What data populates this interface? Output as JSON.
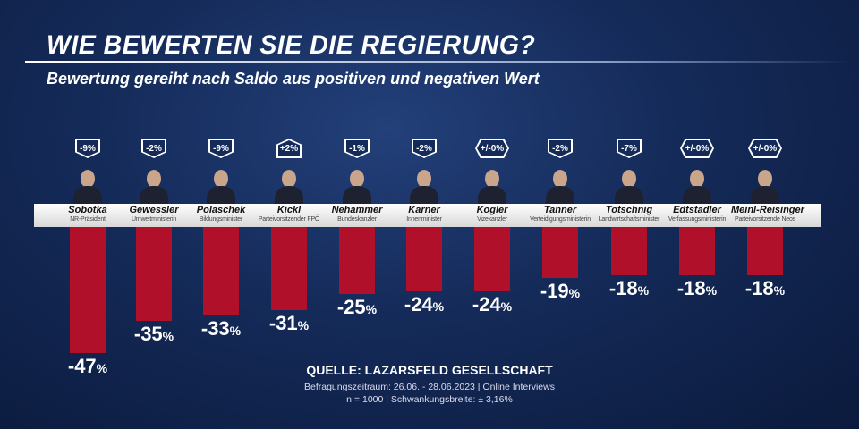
{
  "header": {
    "title": "WIE BEWERTEN SIE DIE REGIERUNG?",
    "subtitle": "Bewertung gereiht nach Saldo aus positiven und negativen Wert"
  },
  "chart_data": {
    "type": "bar",
    "categories": [
      "Sobotka",
      "Gewessler",
      "Polaschek",
      "Kickl",
      "Nehammer",
      "Karner",
      "Kogler",
      "Tanner",
      "Totschnig",
      "Edtstadler",
      "Meinl-Reisinger"
    ],
    "roles": [
      "NR-Präsident",
      "Umweltministerin",
      "Bildungsminister",
      "Parteivorsitzender FPÖ",
      "Bundeskanzler",
      "Innenminister",
      "Vizekanzler",
      "Verteidigungsministerin",
      "Landwirtschaftsminister",
      "Verfassungsministerin",
      "Parteivorsitzende Neos"
    ],
    "values": [
      -47,
      -35,
      -33,
      -31,
      -25,
      -24,
      -24,
      -19,
      -18,
      -18,
      -18
    ],
    "changes": [
      "-9%",
      "-2%",
      "-9%",
      "+2%",
      "-1%",
      "-2%",
      "+/-0%",
      "-2%",
      "-7%",
      "+/-0%",
      "+/-0%"
    ],
    "unit": "%",
    "bar_color": "#b0102a",
    "ylim": [
      -50,
      0
    ]
  },
  "source": {
    "title": "QUELLE:  LAZARSFELD GESELLSCHAFT",
    "line1": "Befragungszeitraum: 26.06. - 28.06.2023 | Online Interviews",
    "line2": "n = 1000 |  Schwankungsbreite: ± 3,16%"
  }
}
